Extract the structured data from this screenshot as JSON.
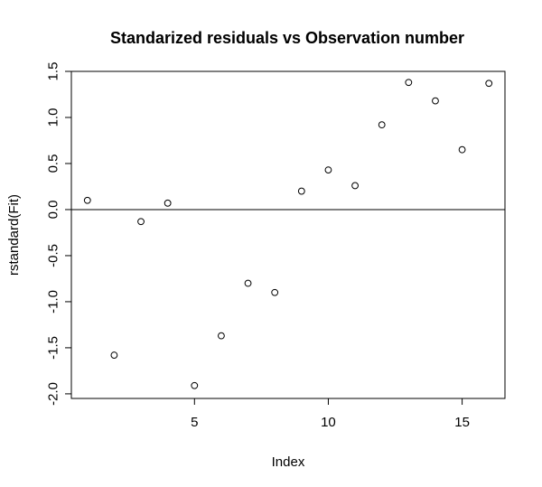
{
  "chart_data": {
    "type": "scatter",
    "title": "Standarized residuals vs Observation number",
    "xlabel": "Index",
    "ylabel": "rstandard(Fit)",
    "xlim": [
      0.4,
      16.6
    ],
    "ylim": [
      -2.05,
      1.5
    ],
    "xticks": [
      5,
      10,
      15
    ],
    "yticks": [
      -2.0,
      -1.5,
      -1.0,
      -0.5,
      0.0,
      0.5,
      1.0,
      1.5
    ],
    "xtick_labels": [
      "5",
      "10",
      "15"
    ],
    "ytick_labels": [
      "-2.0",
      "-1.5",
      "-1.0",
      "-0.5",
      "0.0",
      "0.5",
      "1.0",
      "1.5"
    ],
    "reference_line_y": 0,
    "grid": false,
    "point_marker": "open-circle",
    "points": [
      {
        "x": 1,
        "y": 0.1
      },
      {
        "x": 2,
        "y": -1.58
      },
      {
        "x": 3,
        "y": -0.13
      },
      {
        "x": 4,
        "y": 0.07
      },
      {
        "x": 5,
        "y": -1.91
      },
      {
        "x": 6,
        "y": -1.37
      },
      {
        "x": 7,
        "y": -0.8
      },
      {
        "x": 8,
        "y": -0.9
      },
      {
        "x": 9,
        "y": 0.2
      },
      {
        "x": 10,
        "y": 0.43
      },
      {
        "x": 11,
        "y": 0.26
      },
      {
        "x": 12,
        "y": 0.92
      },
      {
        "x": 13,
        "y": 1.38
      },
      {
        "x": 14,
        "y": 1.18
      },
      {
        "x": 15,
        "y": 0.65
      },
      {
        "x": 16,
        "y": 1.37
      }
    ]
  }
}
